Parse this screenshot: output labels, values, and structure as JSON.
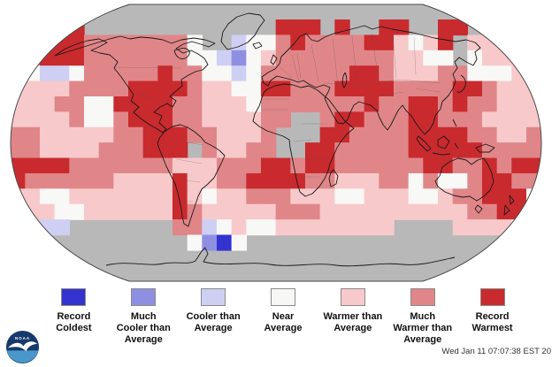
{
  "figure": {
    "kind": "global-temperature-percentiles-map",
    "projection_fill": "#b8b8b9",
    "projection_stroke": "#4a4a4a",
    "coastline_color": "#1a1a1a"
  },
  "legend": {
    "items": [
      {
        "code": "0",
        "label": "Record Coldest",
        "lines": [
          "Record",
          "Coldest"
        ],
        "color": "#3333cf"
      },
      {
        "code": "1",
        "label": "Much Cooler than Average",
        "lines": [
          "Much",
          "Cooler than",
          "Average"
        ],
        "color": "#8f8fe2"
      },
      {
        "code": "2",
        "label": "Cooler than Average",
        "lines": [
          "Cooler than",
          "Average"
        ],
        "color": "#cfcff4"
      },
      {
        "code": "3",
        "label": "Near Average",
        "lines": [
          "Near",
          "Average"
        ],
        "color": "#f7f7f5"
      },
      {
        "code": "4",
        "label": "Warmer than Average",
        "lines": [
          "Warmer than",
          "Average"
        ],
        "color": "#f8c9ca"
      },
      {
        "code": "5",
        "label": "Much Warmer than Average",
        "lines": [
          "Much",
          "Warmer than",
          "Average"
        ],
        "color": "#e08688"
      },
      {
        "code": "6",
        "label": "Record Warmest",
        "lines": [
          "Record",
          "Warmest"
        ],
        "color": "#c92a2e"
      }
    ]
  },
  "footer": {
    "timestamp": "Wed Jan 11 07:07:38 EST 20",
    "logo_text": "NOAA"
  },
  "chart_data": {
    "type": "heatmap",
    "title": "",
    "legend_position": "bottom",
    "categories": [
      "Record Coldest",
      "Much Cooler than Average",
      "Cooler than Average",
      "Near Average",
      "Warmer than Average",
      "Much Warmer than Average",
      "Record Warmest"
    ],
    "palette": {
      "G": "#b8b8b9",
      "0": "#3333cf",
      "1": "#8f8fe2",
      "2": "#cfcff4",
      "3": "#f8f8f6",
      "4": "#f8c9ca",
      "5": "#e08688",
      "6": "#c92a2e"
    },
    "code_meanings": {
      "G": "no data / ocean ice (gray)",
      "0": "Record Coldest",
      "1": "Much Cooler than Average",
      "2": "Cooler than Average",
      "3": "Near Average",
      "4": "Warmer than Average",
      "5": "Much Warmer than Average",
      "6": "Record Warmest"
    },
    "grid_cols": 36,
    "grid_rows": 18,
    "grid_note": "Each cell is a 10-degree lat/lon box, row 0 = 90N-80N, col 0 = 180W-170W",
    "grid": [
      "GGGGGGGGGGGGGGGGGGGGGGGGGGGGGGGGGGGG",
      "GGG66GGGGGGGGGGGGG666G6GG66GG66GGGGG",
      "4466655555553GG233565555664346G44444",
      "456665555555332134555555554433G34444",
      "332235555565533235555556654445533344",
      "444455556666544336655566665555665444",
      "444553366665544435555555655665655444",
      "4444533566655444455GG566555665554444",
      "554444455666554445GGG665555666655445",
      "554444555666G54455GG6655555666665555",
      "666655555554445556656655555566556566",
      "655555544446445566665544455353356655",
      "443344444446434455544433444334556663",
      "444334444446544444555444444444455664",
      "4422GGGGGGG552343344444444GGGG444434",
      "GGGGGGGGGGGG3103GGGGGGGGGGGGGGGGGG3G",
      "GGGGGGGGGGGGGGGGGGGGGGGGGGGGGGGGGGGG",
      "GGGGGGGGGGGGGGGGGGGGGGGGGGGGGGGGGGGG"
    ]
  }
}
